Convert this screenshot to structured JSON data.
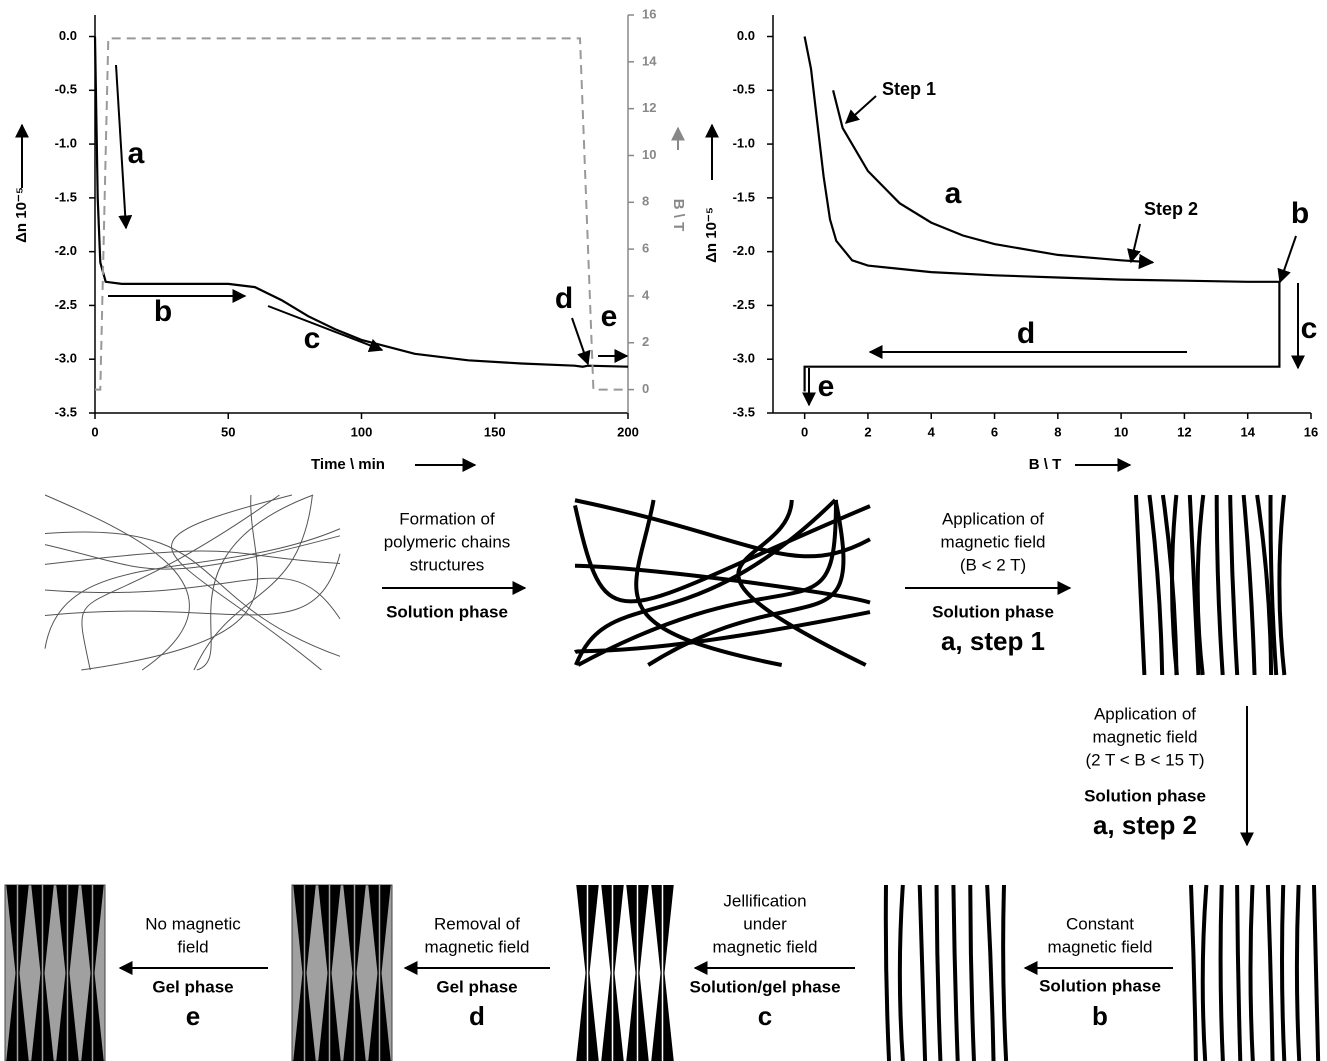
{
  "chart_data": [
    {
      "type": "line",
      "x_label": "Time \\ min",
      "y_label": "Δn 10⁻⁵",
      "y2_label": "B \\ T",
      "xlim": [
        0,
        200
      ],
      "xticks": [
        0,
        50,
        100,
        150,
        200
      ],
      "ylim": [
        -3.5,
        0.2
      ],
      "yticks": [
        {
          "value": 0,
          "label": "0.0"
        },
        -0.5,
        {
          "value": -1,
          "label": "-1.0"
        },
        -1.5,
        {
          "value": -2,
          "label": "-2.0"
        },
        -2.5,
        {
          "value": -3,
          "label": "-3.0"
        },
        -3.5
      ],
      "y2lim": [
        -1,
        16
      ],
      "y2ticks": [
        0,
        2,
        4,
        6,
        8,
        10,
        12,
        14,
        16
      ],
      "series": [
        {
          "color": "#000000",
          "x": [
            0,
            1,
            2,
            4,
            10,
            50,
            60,
            70,
            80,
            90,
            100,
            120,
            140,
            160,
            180,
            183,
            185,
            200
          ],
          "values": [
            0,
            -1.5,
            -2.1,
            -2.28,
            -2.3,
            -2.3,
            -2.33,
            -2.45,
            -2.6,
            -2.72,
            -2.82,
            -2.95,
            -3.01,
            -3.04,
            -3.06,
            -3.07,
            -3.06,
            -3.07
          ]
        },
        {
          "color": "#999999",
          "dashed": true,
          "axis": "y2",
          "x": [
            0,
            2,
            5,
            182,
            187,
            200
          ],
          "values": [
            0,
            0,
            15,
            15,
            0,
            0
          ]
        }
      ],
      "annotations": [
        "a",
        "b",
        "c",
        "d",
        "e"
      ]
    },
    {
      "type": "line",
      "x_label": "B \\ T",
      "y_label": "Δn 10⁻⁵",
      "xlim": [
        -1,
        16
      ],
      "xticks": [
        0,
        2,
        4,
        6,
        8,
        10,
        12,
        14,
        16
      ],
      "ylim": [
        -3.5,
        0.2
      ],
      "yticks": [
        {
          "value": 0,
          "label": "0.0"
        },
        -0.5,
        {
          "value": -1,
          "label": "-1.0"
        },
        -1.5,
        {
          "value": -2,
          "label": "-2.0"
        },
        -2.5,
        {
          "value": -3,
          "label": "-3.0"
        },
        -3.5
      ],
      "series": [
        {
          "color": "#000000",
          "x": [
            0,
            0.2,
            0.4,
            0.6,
            0.8,
            1,
            1.5,
            2,
            4,
            6,
            8,
            10,
            12,
            14,
            15,
            15,
            0,
            0
          ],
          "values": [
            0,
            -0.3,
            -0.8,
            -1.3,
            -1.7,
            -1.9,
            -2.08,
            -2.13,
            -2.19,
            -2.22,
            -2.24,
            -2.26,
            -2.27,
            -2.28,
            -2.28,
            -3.07,
            -3.07,
            -3.3
          ]
        },
        {
          "color": "#000000",
          "x": [
            0.9,
            1.2,
            2,
            3,
            4,
            5,
            6,
            8,
            10,
            11
          ],
          "values": [
            -0.5,
            -0.85,
            -1.25,
            -1.55,
            -1.73,
            -1.85,
            -1.93,
            -2.03,
            -2.08,
            -2.1
          ]
        }
      ],
      "annotations": [
        "Step 1",
        "a",
        "Step 2",
        "b",
        "c",
        "d",
        "e"
      ]
    }
  ],
  "diagram": {
    "steps": [
      {
        "text": [
          "Formation of",
          "polymeric chains",
          "structures"
        ],
        "phase": "Solution phase"
      },
      {
        "text": [
          "Application of",
          "magnetic field",
          "(B < 2 T)"
        ],
        "phase": "Solution phase",
        "label": "a, step 1"
      },
      {
        "text": [
          "Application of",
          "magnetic field",
          "(2 T < B < 15 T)"
        ],
        "phase": "Solution phase",
        "label": "a, step 2"
      },
      {
        "text": [
          "Constant",
          "magnetic field"
        ],
        "phase": "Solution phase",
        "label": "b"
      },
      {
        "text": [
          "Jellification",
          "under",
          "magnetic field"
        ],
        "phase": "Solution/gel phase",
        "label": "c"
      },
      {
        "text": [
          "Removal of",
          "magnetic field"
        ],
        "phase": "Gel phase",
        "label": "d"
      },
      {
        "text": [
          "No magnetic",
          "field"
        ],
        "phase": "Gel phase",
        "label": "e"
      }
    ]
  }
}
